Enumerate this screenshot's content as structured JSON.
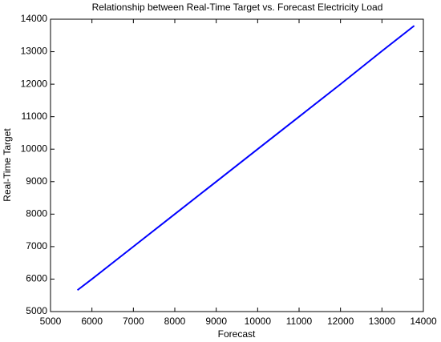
{
  "chart_data": {
    "type": "line",
    "title": "Relationship between Real-Time Target vs. Forecast Electricity Load",
    "x_label": "Forecast",
    "y_label": "Real-Time Target",
    "x": [
      5650,
      6000,
      7000,
      8000,
      9000,
      10000,
      11000,
      12000,
      13000,
      13780
    ],
    "series": [
      {
        "color": "#0000ff",
        "values": [
          5660,
          6000,
          7000,
          8000,
          9000,
          10000,
          11000,
          12000,
          13020,
          13800
        ]
      }
    ],
    "xlim": [
      5000,
      14000
    ],
    "xticks": [
      5000,
      6000,
      7000,
      8000,
      9000,
      10000,
      11000,
      12000,
      13000,
      14000
    ],
    "ylim": [
      5000,
      14000
    ],
    "yticks": [
      5000,
      6000,
      7000,
      8000,
      9000,
      10000,
      11000,
      12000,
      13000,
      14000
    ]
  }
}
